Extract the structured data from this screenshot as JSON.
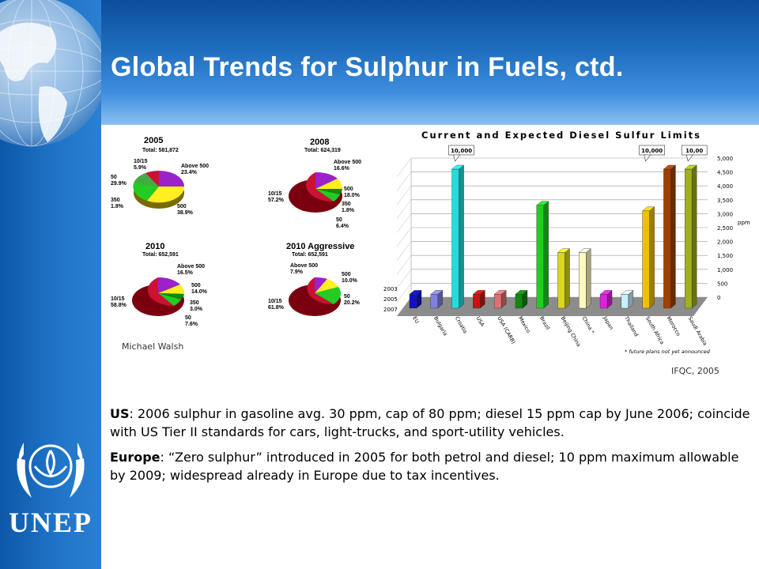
{
  "title": "Global Trends for Sulphur in Fuels, ctd.",
  "logo": {
    "text": "UNEP"
  },
  "pie_charts": [
    {
      "year": "2005",
      "total": "Total: 581,872",
      "labels": [
        {
          "name": "10/15",
          "pct": "5.9%"
        },
        {
          "name": "Above 500",
          "pct": "23.4%"
        },
        {
          "name": "50",
          "pct": "29.9%"
        },
        {
          "name": "350",
          "pct": "1.8%"
        },
        {
          "name": "500",
          "pct": "38.9%"
        }
      ]
    },
    {
      "year": "2008",
      "total": "Total: 624,319",
      "labels": [
        {
          "name": "Above 500",
          "pct": "16.6%"
        },
        {
          "name": "500",
          "pct": "18.0%"
        },
        {
          "name": "10/15",
          "pct": "57.2%"
        },
        {
          "name": "350",
          "pct": "1.8%"
        },
        {
          "name": "50",
          "pct": "6.4%"
        }
      ]
    },
    {
      "year": "2010",
      "total": "Total: 652,591",
      "labels": [
        {
          "name": "Above 500",
          "pct": "16.5%"
        },
        {
          "name": "500",
          "pct": "14.0%"
        },
        {
          "name": "10/15",
          "pct": "58.8%"
        },
        {
          "name": "350",
          "pct": "3.0%"
        },
        {
          "name": "50",
          "pct": "7.6%"
        }
      ]
    },
    {
      "year": "2010 Aggressive",
      "total": "Total: 652,591",
      "labels": [
        {
          "name": "Above 500",
          "pct": "7.9%"
        },
        {
          "name": "500",
          "pct": "10.0%"
        },
        {
          "name": "10/15",
          "pct": "61.8%"
        },
        {
          "name": "50",
          "pct": "20.2%"
        }
      ]
    }
  ],
  "credit_left": "Michael Walsh",
  "credit_right": "IFQC, 2005",
  "chart_data": {
    "type": "bar",
    "title": "Current and Expected Diesel Sulfur Limits",
    "ylabel": "ppm",
    "ylim": [
      0,
      5000
    ],
    "yticks": [
      "0",
      "500",
      "1,000",
      "1,500",
      "2,000",
      "2,500",
      "3,000",
      "3,500",
      "4,000",
      "4,500",
      "5,000"
    ],
    "depth_labels": [
      "2003",
      "2005",
      "2007"
    ],
    "footnote": "* future plans not yet announced",
    "categories": [
      "EU",
      "Bulgaria",
      "Croatia",
      "USA",
      "USA (CARB)",
      "Mexico",
      "Brazil",
      "Beijing China",
      "China *",
      "Japan",
      "Thailand",
      "South Africa",
      "Morocco",
      "Saudi Arabia"
    ],
    "callouts": [
      {
        "category": "Croatia",
        "text": "10,000"
      },
      {
        "category": "South Africa",
        "text": "10,000"
      },
      {
        "category": "Saudi Arabia",
        "text": "10,00"
      }
    ],
    "series": [
      {
        "values": [
          500,
          500,
          5000,
          500,
          500,
          500,
          3700,
          2000,
          2000,
          500,
          500,
          3500,
          5000,
          5000
        ]
      }
    ],
    "colors": [
      "#1010c8",
      "#8080e0",
      "#22dddd",
      "#cc1111",
      "#e07070",
      "#118811",
      "#22cc22",
      "#d8d822",
      "#fff8c0",
      "#dd22dd",
      "#c8f0ff",
      "#f0c000",
      "#a04000",
      "#a0b020"
    ]
  },
  "paragraphs": [
    {
      "lead": "US",
      "text": ": 2006 sulphur in gasoline avg. 30 ppm, cap of 80 ppm; diesel 15 ppm cap by June 2006; coincide with US Tier II standards for cars, light-trucks, and sport-utility vehicles."
    },
    {
      "lead": "Europe",
      "text": ": “Zero sulphur” introduced in 2005 for both petrol and diesel; 10 ppm maximum allowable by 2009; widespread already in Europe due to tax incentives."
    }
  ]
}
